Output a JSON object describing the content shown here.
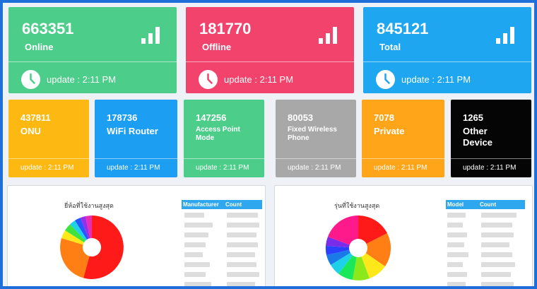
{
  "stats": [
    {
      "value": "663351",
      "label": "Online",
      "update": "update : 2:11 PM",
      "color": "#4ccd8a"
    },
    {
      "value": "181770",
      "label": "Offline",
      "update": "update : 2:11 PM",
      "color": "#f2436d"
    },
    {
      "value": "845121",
      "label": "Total",
      "update": "update : 2:11 PM",
      "color": "#1ea6f1"
    }
  ],
  "cards": [
    {
      "value": "437811",
      "name": "ONU",
      "update": "update : 2:11 PM",
      "color": "#fdb812"
    },
    {
      "value": "178736",
      "name": "WiFi Router",
      "update": "update : 2:11 PM",
      "color": "#1c9ef2"
    },
    {
      "value": "147256",
      "name": "Access Point Mode",
      "update": "update : 2:11 PM",
      "color": "#4ccd8a"
    },
    {
      "value": "80053",
      "name": "Fixed Wireless Phone",
      "update": "update : 2:11 PM",
      "color": "#a8a8a8"
    },
    {
      "value": "7078",
      "name": "Private",
      "update": "update : 2:11 PM",
      "color": "#ffa51a"
    },
    {
      "value": "1265",
      "name": "Other Device",
      "update": "update : 2:11 PM",
      "color": "#050505"
    }
  ],
  "panels": {
    "left": {
      "title": "ยี่ห้อที่ใช้งานสูงสุด",
      "col1": "Manufacturer",
      "col2": "Count"
    },
    "right": {
      "title": "รุ่นที่ใช้งานสูงสุด",
      "col1": "Model",
      "col2": "Count"
    }
  },
  "icons": {
    "stat_icon": "bar-chart-icon",
    "clock_icon": "clock-icon"
  }
}
